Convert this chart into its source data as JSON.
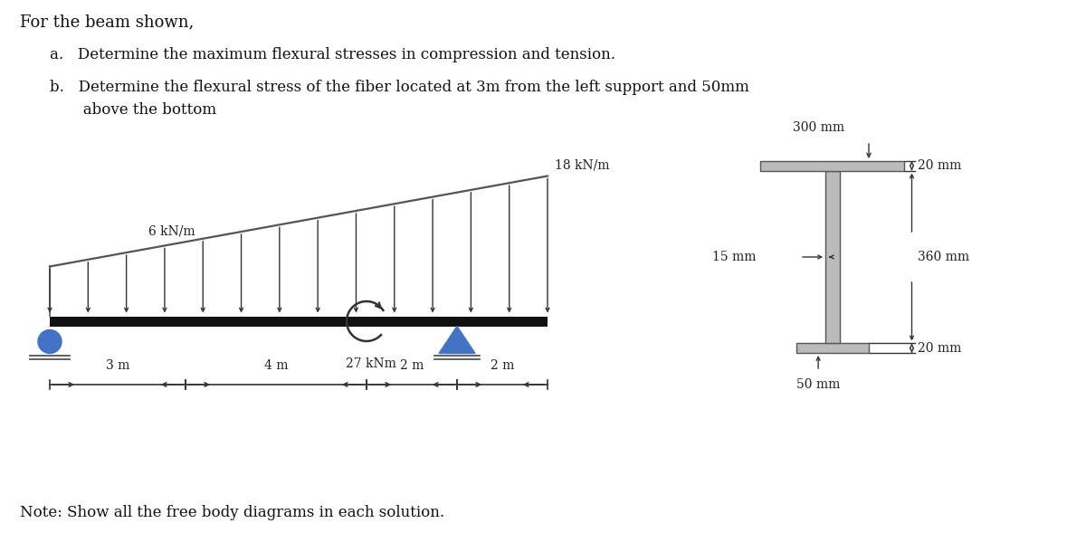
{
  "bg_color": "#ffffff",
  "title_text": "For the beam shown,",
  "item_a": "a.   Determine the maximum flexural stresses in compression and tension.",
  "item_b": "b.   Determine the flexural stress of the fiber located at 3m from the left support and 50mm\n       above the bottom",
  "note_text": "Note: Show all the free body diagrams in each solution.",
  "beam_color": "#111111",
  "load_color": "#333333",
  "support_pin_color": "#4472C4",
  "support_roller_color": "#4472C4",
  "section_fill": "#BBBBBB",
  "section_edge": "#555555",
  "dim_color": "#333333",
  "label_color": "#222222",
  "moment_color": "#333333",
  "load_label_6": "6 kN/m",
  "load_label_18": "18 kN/m",
  "moment_label": "27 kNm",
  "dim_3m": "3 m",
  "dim_4m": "4 m",
  "dim_2m_1": "2 m",
  "dim_2m_2": "2 m",
  "sec_300": "300 mm",
  "sec_20_top": "20 mm",
  "sec_15": "15 mm",
  "sec_360": "360 mm",
  "sec_20_bot": "20 mm",
  "sec_50": "50 mm",
  "fs_main": 13,
  "fs_items": 12,
  "fs_labels": 10,
  "fs_dim": 10
}
